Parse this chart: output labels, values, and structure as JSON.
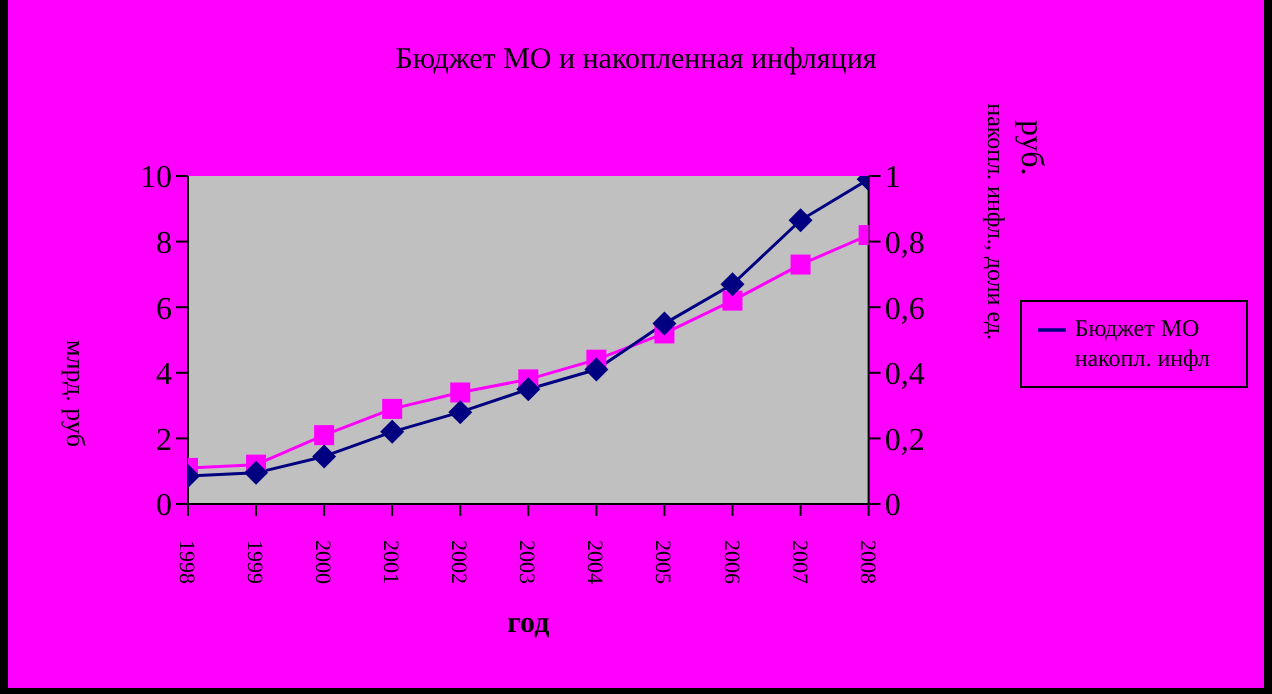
{
  "chart_data": {
    "type": "line",
    "title": "Бюджет МО и накопленная инфляция",
    "xlabel": "год",
    "ylabel": "млрд. руб",
    "y2label": "накопл. инфл., доли ед.",
    "annotations": [
      "руб."
    ],
    "categories": [
      "1998",
      "1999",
      "2000",
      "2001",
      "2002",
      "2003",
      "2004",
      "2005",
      "2006",
      "2007",
      "2008"
    ],
    "series": [
      {
        "name": "накопл. инфл",
        "color": "#ff00ff",
        "axis": "y2",
        "marker": "square",
        "values": [
          0.11,
          0.12,
          0.21,
          0.29,
          0.34,
          0.38,
          0.44,
          0.52,
          0.62,
          0.73,
          0.82
        ]
      },
      {
        "name": "Бюджет МО",
        "color": "#000080",
        "marker": "diamond",
        "values": [
          0.85,
          0.95,
          1.45,
          2.2,
          2.8,
          3.5,
          4.1,
          5.5,
          6.7,
          8.65,
          9.9
        ]
      }
    ],
    "ylim": [
      0,
      10
    ],
    "yticks": [
      0,
      2,
      4,
      6,
      8,
      10
    ],
    "y2lim": [
      0,
      1
    ],
    "y2ticks": [
      0,
      {
        "value": 0.2,
        "label": "0,2"
      },
      {
        "value": 0.4,
        "label": "0,4"
      },
      {
        "value": 0.6,
        "label": "0,6"
      },
      {
        "value": 0.8,
        "label": "0,8"
      },
      1
    ],
    "grid": false,
    "legend": "right",
    "line_style": "solid"
  }
}
